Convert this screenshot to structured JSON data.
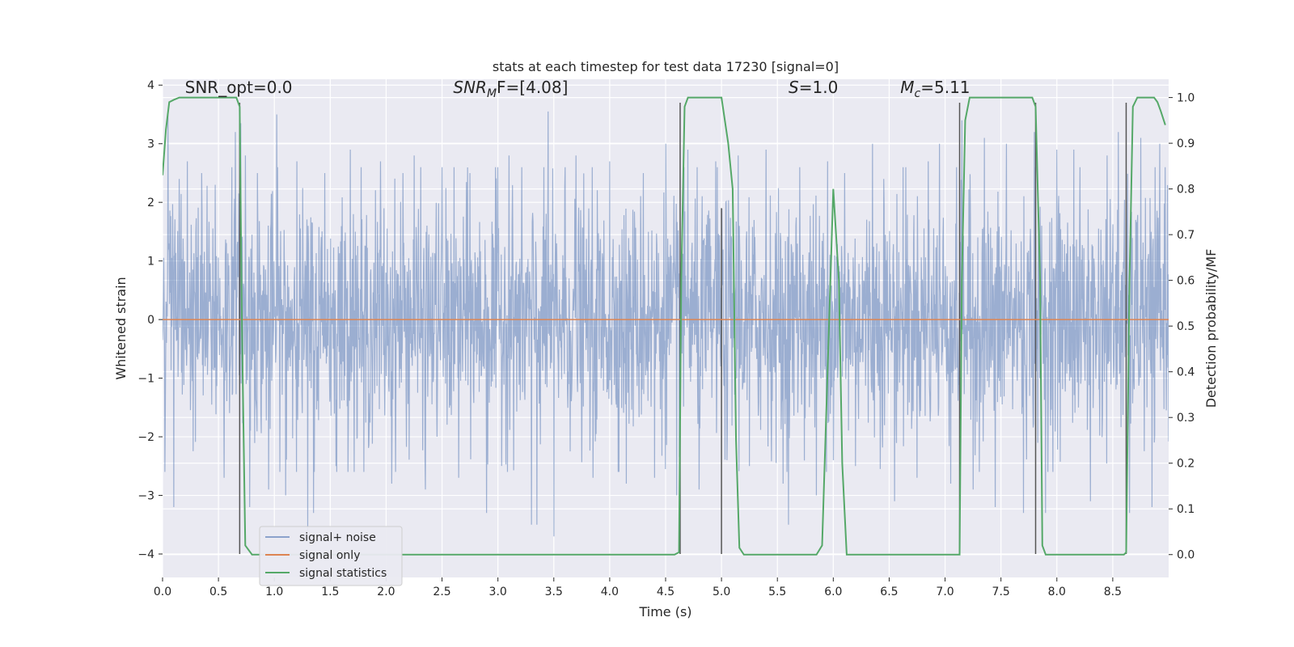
{
  "chart_data": {
    "type": "line",
    "title": "stats at each timestep for test data 17230 [signal=0]",
    "xlabel": "Time (s)",
    "ylabel_left": "Whitened strain",
    "ylabel_right": "Detection probability/MF",
    "xlim": [
      0.0,
      9.0
    ],
    "ylim_left": [
      -4.4,
      4.1
    ],
    "ylim_right": [
      -0.05,
      1.04
    ],
    "x_ticks": [
      0.0,
      0.5,
      1.0,
      1.5,
      2.0,
      2.5,
      3.0,
      3.5,
      4.0,
      4.5,
      5.0,
      5.5,
      6.0,
      6.5,
      7.0,
      7.5,
      8.0,
      8.5
    ],
    "x_tick_labels": [
      "0.0",
      "0.5",
      "1.0",
      "1.5",
      "2.0",
      "2.5",
      "3.0",
      "3.5",
      "4.0",
      "4.5",
      "5.0",
      "5.5",
      "6.0",
      "6.5",
      "7.0",
      "7.5",
      "8.0",
      "8.5"
    ],
    "y_left_ticks": [
      4,
      3,
      2,
      1,
      0,
      -1,
      -2,
      -3,
      -4
    ],
    "y_left_tick_labels": [
      "4",
      "3",
      "2",
      "1",
      "0",
      "−1",
      "−2",
      "−3",
      "−4"
    ],
    "y_right_ticks": [
      1.0,
      0.9,
      0.8,
      0.7,
      0.6,
      0.5,
      0.4,
      0.3,
      0.2,
      0.1,
      0.0
    ],
    "y_right_tick_labels": [
      "1.0",
      "0.9",
      "0.8",
      "0.7",
      "0.6",
      "0.5",
      "0.4",
      "0.3",
      "0.2",
      "0.1",
      "0.0"
    ],
    "grid": true,
    "legend_placement": "lower-left",
    "annotations": [
      {
        "x": 0.2,
        "y_right": 1.01,
        "base": "SNR_opt=0.0",
        "sub": "",
        "rest": "",
        "italic_base": false
      },
      {
        "x": 2.6,
        "y_right": 1.01,
        "base": "SNR",
        "sub": "M",
        "rest": "F=[4.08]",
        "italic_base": true
      },
      {
        "x": 5.6,
        "y_right": 1.01,
        "base": "S",
        "sub": "",
        "rest": "=1.0",
        "italic_base": true
      },
      {
        "x": 6.6,
        "y_right": 1.01,
        "base": "M",
        "sub": "c",
        "rest": "=5.11",
        "italic_base": true
      }
    ],
    "series": [
      {
        "name": "signal+ noise",
        "axis": "left",
        "color": "#4c72b0",
        "alpha": 0.5,
        "noise_std": 1.0,
        "peaks": [
          [
            0.02,
            -2.6
          ],
          [
            0.05,
            3.5
          ],
          [
            0.1,
            -3.2
          ],
          [
            0.15,
            2.4
          ],
          [
            0.22,
            2.7
          ],
          [
            0.35,
            2.5
          ],
          [
            0.47,
            2.3
          ],
          [
            0.55,
            -2.7
          ],
          [
            0.62,
            2.6
          ],
          [
            0.65,
            3.2
          ],
          [
            0.7,
            3.35
          ],
          [
            0.74,
            2.8
          ],
          [
            0.78,
            -3.2
          ],
          [
            0.85,
            2.5
          ],
          [
            0.95,
            -2.9
          ],
          [
            1.02,
            3.5
          ],
          [
            1.1,
            -3.0
          ],
          [
            1.2,
            2.7
          ],
          [
            1.3,
            -3.6
          ],
          [
            1.35,
            -3.3
          ],
          [
            1.45,
            2.5
          ],
          [
            1.55,
            -2.5
          ],
          [
            1.68,
            2.9
          ],
          [
            1.8,
            -2.6
          ],
          [
            1.95,
            2.7
          ],
          [
            2.05,
            -2.8
          ],
          [
            2.15,
            2.5
          ],
          [
            2.25,
            2.8
          ],
          [
            2.35,
            -2.9
          ],
          [
            2.5,
            2.6
          ],
          [
            2.65,
            -2.7
          ],
          [
            2.75,
            2.5
          ],
          [
            2.9,
            -3.3
          ],
          [
            3.0,
            2.6
          ],
          [
            3.1,
            2.8
          ],
          [
            3.3,
            -3.5
          ],
          [
            3.35,
            -3.5
          ],
          [
            3.45,
            3.55
          ],
          [
            3.5,
            -3.7
          ],
          [
            3.6,
            2.6
          ],
          [
            3.7,
            2.8
          ],
          [
            3.85,
            -2.7
          ],
          [
            4.0,
            2.7
          ],
          [
            4.15,
            -2.8
          ],
          [
            4.3,
            2.5
          ],
          [
            4.4,
            -2.7
          ],
          [
            4.5,
            3.0
          ],
          [
            4.6,
            -3.0
          ],
          [
            4.7,
            2.9
          ],
          [
            4.8,
            -2.9
          ],
          [
            4.95,
            2.7
          ],
          [
            5.05,
            -2.4
          ],
          [
            5.15,
            2.8
          ],
          [
            5.25,
            -2.5
          ],
          [
            5.4,
            2.9
          ],
          [
            5.55,
            -2.8
          ],
          [
            5.6,
            -3.5
          ],
          [
            5.7,
            2.6
          ],
          [
            5.85,
            -3.0
          ],
          [
            5.95,
            2.7
          ],
          [
            6.0,
            -2.4
          ],
          [
            6.1,
            2.5
          ],
          [
            6.2,
            -2.5
          ],
          [
            6.35,
            3.0
          ],
          [
            6.45,
            2.4
          ],
          [
            6.55,
            -3.1
          ],
          [
            6.65,
            2.6
          ],
          [
            6.75,
            -2.7
          ],
          [
            6.85,
            2.7
          ],
          [
            6.95,
            3.0
          ],
          [
            7.05,
            -2.8
          ],
          [
            7.15,
            3.4
          ],
          [
            7.25,
            -2.9
          ],
          [
            7.35,
            3.1
          ],
          [
            7.45,
            -3.2
          ],
          [
            7.55,
            3.0
          ],
          [
            7.7,
            -3.3
          ],
          [
            7.8,
            3.2
          ],
          [
            7.9,
            -3.3
          ],
          [
            8.0,
            2.9
          ],
          [
            8.15,
            2.9
          ],
          [
            8.3,
            -3.1
          ],
          [
            8.45,
            2.8
          ],
          [
            8.55,
            3.2
          ],
          [
            8.65,
            -3.3
          ],
          [
            8.75,
            3.1
          ],
          [
            8.85,
            -3.2
          ],
          [
            8.92,
            3.0
          ],
          [
            8.97,
            2.6
          ]
        ]
      },
      {
        "name": "signal only",
        "axis": "left",
        "color": "#dd8452",
        "x": [
          0.0,
          9.0
        ],
        "y": [
          0.0,
          0.0
        ]
      },
      {
        "name": "signal statistics",
        "axis": "right",
        "color": "#55a868",
        "x": [
          0.0,
          0.03,
          0.06,
          0.1,
          0.15,
          0.2,
          0.3,
          0.4,
          0.5,
          0.6,
          0.66,
          0.69,
          0.71,
          0.74,
          0.8,
          0.9,
          1.0,
          2.0,
          3.0,
          4.0,
          4.5,
          4.58,
          4.62,
          4.64,
          4.67,
          4.7,
          4.8,
          4.9,
          5.0,
          5.06,
          5.1,
          5.13,
          5.16,
          5.2,
          5.3,
          5.5,
          5.75,
          5.85,
          5.9,
          6.0,
          6.05,
          6.08,
          6.12,
          6.15,
          6.2,
          6.5,
          7.0,
          7.13,
          7.15,
          7.18,
          7.22,
          7.3,
          7.5,
          7.7,
          7.78,
          7.81,
          7.85,
          7.87,
          7.9,
          7.95,
          8.1,
          8.3,
          8.55,
          8.6,
          8.62,
          8.65,
          8.68,
          8.72,
          8.8,
          8.87,
          8.9,
          8.93,
          8.97
        ],
        "y": [
          0.83,
          0.93,
          0.99,
          0.995,
          1.0,
          1.0,
          1.0,
          1.0,
          1.0,
          1.0,
          1.0,
          0.98,
          0.5,
          0.02,
          0.0,
          0.0,
          0.0,
          0.0,
          0.0,
          0.0,
          0.0,
          0.0,
          0.005,
          0.6,
          0.98,
          1.0,
          1.0,
          1.0,
          1.0,
          0.9,
          0.8,
          0.25,
          0.015,
          0.0,
          0.0,
          0.0,
          0.0,
          0.0,
          0.02,
          0.8,
          0.6,
          0.2,
          0.0,
          0.0,
          0.0,
          0.0,
          0.0,
          0.0,
          0.6,
          0.95,
          1.0,
          1.0,
          1.0,
          1.0,
          1.0,
          0.98,
          0.6,
          0.02,
          0.0,
          0.0,
          0.0,
          0.0,
          0.0,
          0.0,
          0.005,
          0.6,
          0.98,
          1.0,
          1.0,
          1.0,
          0.99,
          0.97,
          0.94
        ]
      }
    ],
    "markers": {
      "color": "#555555",
      "x": [
        0.69,
        4.63,
        5.0,
        7.13,
        7.81,
        8.62
      ],
      "y_left_top": [
        3.7,
        3.7,
        1.9,
        3.7,
        3.7,
        3.7
      ],
      "y_left_bottom": [
        -4.0,
        -4.0,
        -4.0,
        -4.0,
        -4.0,
        -4.0
      ]
    }
  },
  "legend": {
    "items": [
      {
        "label": "signal+ noise",
        "color": "#4c72b0"
      },
      {
        "label": "signal only",
        "color": "#dd8452"
      },
      {
        "label": "signal statistics",
        "color": "#55a868"
      }
    ]
  }
}
